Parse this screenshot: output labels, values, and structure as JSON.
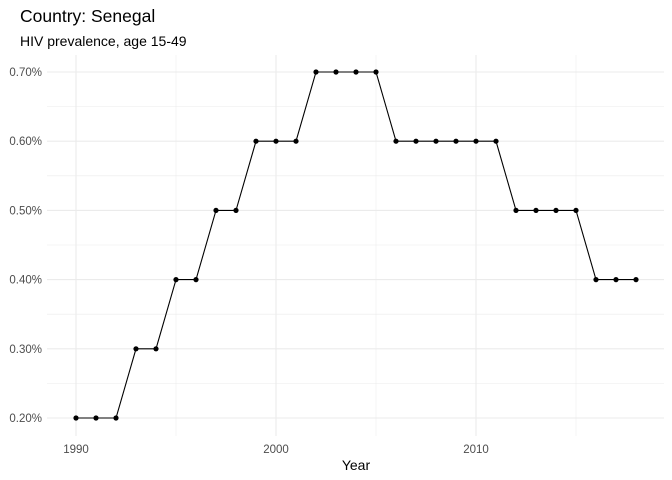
{
  "chart_data": {
    "type": "line",
    "title": "Country: Senegal",
    "subtitle": "HIV prevalence, age 15-49",
    "xlabel": "Year",
    "ylabel": "",
    "x": [
      1990,
      1991,
      1992,
      1993,
      1994,
      1995,
      1996,
      1997,
      1998,
      1999,
      2000,
      2001,
      2002,
      2003,
      2004,
      2005,
      2006,
      2007,
      2008,
      2009,
      2010,
      2011,
      2012,
      2013,
      2014,
      2015,
      2016,
      2017,
      2018
    ],
    "values": [
      0.2,
      0.2,
      0.2,
      0.3,
      0.3,
      0.4,
      0.4,
      0.5,
      0.5,
      0.6,
      0.6,
      0.6,
      0.7,
      0.7,
      0.7,
      0.7,
      0.6,
      0.6,
      0.6,
      0.6,
      0.6,
      0.6,
      0.5,
      0.5,
      0.5,
      0.5,
      0.4,
      0.4,
      0.4
    ],
    "xlim": [
      1989.1,
      2018.9
    ],
    "ylim": [
      0.2,
      0.7
    ],
    "x_ticks": [
      {
        "value": 1990,
        "label": "1990"
      },
      {
        "value": 2000,
        "label": "2000"
      },
      {
        "value": 2010,
        "label": "2010"
      }
    ],
    "y_ticks": [
      {
        "value": 0.2,
        "label": "0.20%"
      },
      {
        "value": 0.3,
        "label": "0.30%"
      },
      {
        "value": 0.4,
        "label": "0.40%"
      },
      {
        "value": 0.5,
        "label": "0.50%"
      },
      {
        "value": 0.6,
        "label": "0.60%"
      },
      {
        "value": 0.7,
        "label": "0.70%"
      }
    ],
    "grid": true,
    "legend": "none",
    "line_color": "#000000",
    "point_color": "#000000",
    "grid_color": "#ebebeb"
  }
}
